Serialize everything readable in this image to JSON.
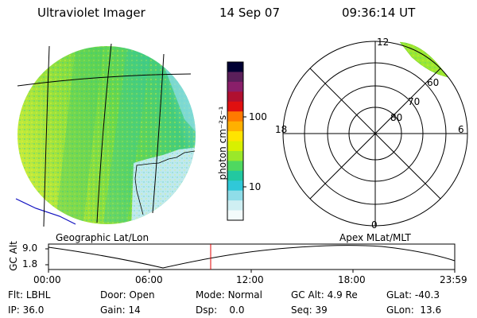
{
  "header": {
    "instrument": "Ultraviolet Imager",
    "date": "14 Sep 07",
    "time": "09:36:14 UT"
  },
  "colorbar": {
    "unit_label": "photon cm⁻²s⁻¹",
    "ticks": [
      "100",
      "10"
    ],
    "colors": [
      "#000033",
      "#5a1f5a",
      "#8a1f6a",
      "#b01030",
      "#e01010",
      "#ff7a00",
      "#ffb000",
      "#ffe400",
      "#d8f000",
      "#9ae82a",
      "#4fd860",
      "#22c8a0",
      "#30c8d8",
      "#8fdde8",
      "#cfeff3",
      "#f3fbfb"
    ]
  },
  "geo_panel": {
    "label": "Geographic Lat/Lon"
  },
  "polar_panel": {
    "label": "Apex MLat/MLT",
    "mlt_labels": {
      "top": "12",
      "left": "18",
      "right": "6",
      "bottom": "0"
    },
    "lat_labels": [
      "60",
      "70",
      "80"
    ]
  },
  "orbit_plot": {
    "ylabel": "GC Alt",
    "y_ticks": [
      "9.0",
      "1.8"
    ],
    "x_ticks": [
      "00:00",
      "06:00",
      "12:00",
      "18:00",
      "23:59"
    ],
    "marker_color": "#e00000"
  },
  "status": {
    "row1": [
      {
        "label": "Flt:",
        "value": "LBHL"
      },
      {
        "label": "Door:",
        "value": "Open"
      },
      {
        "label": "Mode:",
        "value": "Normal"
      },
      {
        "label": "GC Alt:",
        "value": "4.9 Re"
      },
      {
        "label": "GLat:",
        "value": "-40.3"
      }
    ],
    "row2": [
      {
        "label": "IP:",
        "value": "36.0"
      },
      {
        "label": "Gain:",
        "value": "14"
      },
      {
        "label": "Dsp:",
        "value": "0.0"
      },
      {
        "label": "Seq:",
        "value": "39"
      },
      {
        "label": "GLon:",
        "value": "13.6"
      }
    ]
  }
}
